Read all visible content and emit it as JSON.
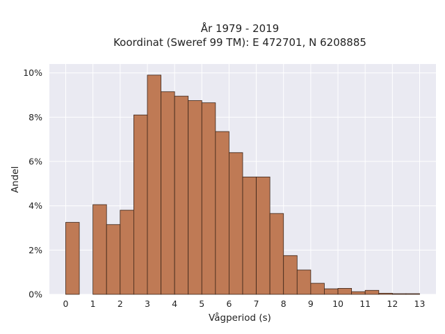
{
  "chart_data": {
    "type": "bar",
    "title": "År 1979 - 2019",
    "subtitle": "Koordinat (Sweref 99 TM): E 472701, N 6208885",
    "xlabel": "Vågperiod (s)",
    "ylabel": "Andel",
    "bin_width": 0.5,
    "bins_left_edge": [
      0,
      1,
      1.5,
      2,
      2.5,
      3,
      3.5,
      4,
      4.5,
      5,
      5.5,
      6,
      6.5,
      7,
      7.5,
      8,
      8.5,
      9,
      9.5,
      10,
      10.5,
      11,
      11.5,
      12,
      12.5
    ],
    "values": [
      3.25,
      4.05,
      3.15,
      3.8,
      8.1,
      9.9,
      9.15,
      8.95,
      8.75,
      8.65,
      7.35,
      6.4,
      5.3,
      5.3,
      3.65,
      1.75,
      1.1,
      0.5,
      0.25,
      0.27,
      0.12,
      0.18,
      0.05,
      0.03,
      0.03
    ],
    "xlim": [
      -0.6,
      13.6
    ],
    "ylim": [
      0,
      10.4
    ],
    "x_ticks": [
      0,
      1,
      2,
      3,
      4,
      5,
      6,
      7,
      8,
      9,
      10,
      11,
      12,
      13
    ],
    "y_ticks": [
      0,
      2,
      4,
      6,
      8,
      10
    ],
    "y_tick_labels": [
      "0%",
      "2%",
      "4%",
      "6%",
      "8%",
      "10%"
    ],
    "grid": true,
    "bar_color": "#bf7a55",
    "edge_color": "#3a2418",
    "background_color": "#eaeaf2"
  }
}
